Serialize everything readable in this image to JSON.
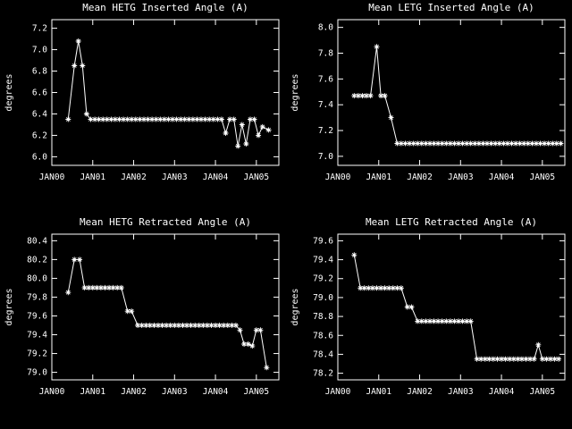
{
  "page": {
    "background": "#000000",
    "foreground": "#ffffff"
  },
  "chart_data": [
    {
      "type": "line",
      "marker": "asterisk",
      "title": "Mean HETG Inserted Angle (A)",
      "xlabel": "",
      "ylabel": "degrees",
      "xlim": [
        2000.0,
        2005.55
      ],
      "ylim": [
        5.92,
        7.28
      ],
      "yticks": [
        6.0,
        6.2,
        6.4,
        6.6,
        6.8,
        7.0,
        7.2
      ],
      "xtick_values": [
        2000,
        2001,
        2002,
        2003,
        2004,
        2005
      ],
      "xtick_labels": [
        "JAN00",
        "JAN01",
        "JAN02",
        "JAN03",
        "JAN04",
        "JAN05"
      ],
      "grid": false,
      "legend": "none",
      "points": [
        [
          2000.4,
          6.35
        ],
        [
          2000.55,
          6.85
        ],
        [
          2000.65,
          7.08
        ],
        [
          2000.75,
          6.85
        ],
        [
          2000.85,
          6.4
        ],
        [
          2000.95,
          6.35
        ],
        [
          2001.05,
          6.35
        ],
        [
          2001.15,
          6.35
        ],
        [
          2001.25,
          6.35
        ],
        [
          2001.35,
          6.35
        ],
        [
          2001.45,
          6.35
        ],
        [
          2001.55,
          6.35
        ],
        [
          2001.65,
          6.35
        ],
        [
          2001.75,
          6.35
        ],
        [
          2001.85,
          6.35
        ],
        [
          2001.95,
          6.35
        ],
        [
          2002.05,
          6.35
        ],
        [
          2002.15,
          6.35
        ],
        [
          2002.25,
          6.35
        ],
        [
          2002.35,
          6.35
        ],
        [
          2002.45,
          6.35
        ],
        [
          2002.55,
          6.35
        ],
        [
          2002.65,
          6.35
        ],
        [
          2002.75,
          6.35
        ],
        [
          2002.85,
          6.35
        ],
        [
          2002.95,
          6.35
        ],
        [
          2003.05,
          6.35
        ],
        [
          2003.15,
          6.35
        ],
        [
          2003.25,
          6.35
        ],
        [
          2003.35,
          6.35
        ],
        [
          2003.45,
          6.35
        ],
        [
          2003.55,
          6.35
        ],
        [
          2003.65,
          6.35
        ],
        [
          2003.75,
          6.35
        ],
        [
          2003.85,
          6.35
        ],
        [
          2003.95,
          6.35
        ],
        [
          2004.05,
          6.35
        ],
        [
          2004.15,
          6.35
        ],
        [
          2004.25,
          6.22
        ],
        [
          2004.35,
          6.35
        ],
        [
          2004.45,
          6.35
        ],
        [
          2004.55,
          6.1
        ],
        [
          2004.65,
          6.3
        ],
        [
          2004.75,
          6.12
        ],
        [
          2004.85,
          6.35
        ],
        [
          2004.95,
          6.35
        ],
        [
          2005.05,
          6.2
        ],
        [
          2005.15,
          6.28
        ],
        [
          2005.3,
          6.25
        ]
      ]
    },
    {
      "type": "line",
      "marker": "asterisk",
      "title": "Mean LETG Inserted Angle (A)",
      "xlabel": "",
      "ylabel": "degrees",
      "xlim": [
        2000.0,
        2005.55
      ],
      "ylim": [
        6.93,
        8.06
      ],
      "yticks": [
        7.0,
        7.2,
        7.4,
        7.6,
        7.8,
        8.0
      ],
      "xtick_values": [
        2000,
        2001,
        2002,
        2003,
        2004,
        2005
      ],
      "xtick_labels": [
        "JAN00",
        "JAN01",
        "JAN02",
        "JAN03",
        "JAN04",
        "JAN05"
      ],
      "grid": false,
      "legend": "none",
      "points": [
        [
          2000.4,
          7.47
        ],
        [
          2000.5,
          7.47
        ],
        [
          2000.6,
          7.47
        ],
        [
          2000.7,
          7.47
        ],
        [
          2000.8,
          7.47
        ],
        [
          2000.95,
          7.85
        ],
        [
          2001.05,
          7.47
        ],
        [
          2001.15,
          7.47
        ],
        [
          2001.3,
          7.3
        ],
        [
          2001.45,
          7.1
        ],
        [
          2001.55,
          7.1
        ],
        [
          2001.65,
          7.1
        ],
        [
          2001.75,
          7.1
        ],
        [
          2001.85,
          7.1
        ],
        [
          2001.95,
          7.1
        ],
        [
          2002.05,
          7.1
        ],
        [
          2002.15,
          7.1
        ],
        [
          2002.25,
          7.1
        ],
        [
          2002.35,
          7.1
        ],
        [
          2002.45,
          7.1
        ],
        [
          2002.55,
          7.1
        ],
        [
          2002.65,
          7.1
        ],
        [
          2002.75,
          7.1
        ],
        [
          2002.85,
          7.1
        ],
        [
          2002.95,
          7.1
        ],
        [
          2003.05,
          7.1
        ],
        [
          2003.15,
          7.1
        ],
        [
          2003.25,
          7.1
        ],
        [
          2003.35,
          7.1
        ],
        [
          2003.45,
          7.1
        ],
        [
          2003.55,
          7.1
        ],
        [
          2003.65,
          7.1
        ],
        [
          2003.75,
          7.1
        ],
        [
          2003.85,
          7.1
        ],
        [
          2003.95,
          7.1
        ],
        [
          2004.05,
          7.1
        ],
        [
          2004.15,
          7.1
        ],
        [
          2004.25,
          7.1
        ],
        [
          2004.35,
          7.1
        ],
        [
          2004.45,
          7.1
        ],
        [
          2004.55,
          7.1
        ],
        [
          2004.65,
          7.1
        ],
        [
          2004.75,
          7.1
        ],
        [
          2004.85,
          7.1
        ],
        [
          2004.95,
          7.1
        ],
        [
          2005.05,
          7.1
        ],
        [
          2005.15,
          7.1
        ],
        [
          2005.25,
          7.1
        ],
        [
          2005.35,
          7.1
        ],
        [
          2005.45,
          7.1
        ]
      ]
    },
    {
      "type": "line",
      "marker": "asterisk",
      "title": "Mean HETG Retracted Angle (A)",
      "xlabel": "",
      "ylabel": "degrees",
      "xlim": [
        2000.0,
        2005.55
      ],
      "ylim": [
        78.92,
        80.47
      ],
      "yticks": [
        79.0,
        79.2,
        79.4,
        79.6,
        79.8,
        80.0,
        80.2,
        80.4
      ],
      "xtick_values": [
        2000,
        2001,
        2002,
        2003,
        2004,
        2005
      ],
      "xtick_labels": [
        "JAN00",
        "JAN01",
        "JAN02",
        "JAN03",
        "JAN04",
        "JAN05"
      ],
      "grid": false,
      "legend": "none",
      "points": [
        [
          2000.4,
          79.85
        ],
        [
          2000.55,
          80.2
        ],
        [
          2000.68,
          80.2
        ],
        [
          2000.8,
          79.9
        ],
        [
          2000.9,
          79.9
        ],
        [
          2001.0,
          79.9
        ],
        [
          2001.1,
          79.9
        ],
        [
          2001.2,
          79.9
        ],
        [
          2001.3,
          79.9
        ],
        [
          2001.4,
          79.9
        ],
        [
          2001.5,
          79.9
        ],
        [
          2001.6,
          79.9
        ],
        [
          2001.7,
          79.9
        ],
        [
          2001.85,
          79.65
        ],
        [
          2001.95,
          79.65
        ],
        [
          2002.1,
          79.5
        ],
        [
          2002.2,
          79.5
        ],
        [
          2002.3,
          79.5
        ],
        [
          2002.4,
          79.5
        ],
        [
          2002.5,
          79.5
        ],
        [
          2002.6,
          79.5
        ],
        [
          2002.7,
          79.5
        ],
        [
          2002.8,
          79.5
        ],
        [
          2002.9,
          79.5
        ],
        [
          2003.0,
          79.5
        ],
        [
          2003.1,
          79.5
        ],
        [
          2003.2,
          79.5
        ],
        [
          2003.3,
          79.5
        ],
        [
          2003.4,
          79.5
        ],
        [
          2003.5,
          79.5
        ],
        [
          2003.6,
          79.5
        ],
        [
          2003.7,
          79.5
        ],
        [
          2003.8,
          79.5
        ],
        [
          2003.9,
          79.5
        ],
        [
          2004.0,
          79.5
        ],
        [
          2004.1,
          79.5
        ],
        [
          2004.2,
          79.5
        ],
        [
          2004.3,
          79.5
        ],
        [
          2004.4,
          79.5
        ],
        [
          2004.5,
          79.5
        ],
        [
          2004.6,
          79.45
        ],
        [
          2004.7,
          79.3
        ],
        [
          2004.8,
          79.3
        ],
        [
          2004.9,
          79.28
        ],
        [
          2005.0,
          79.45
        ],
        [
          2005.1,
          79.45
        ],
        [
          2005.25,
          79.05
        ]
      ]
    },
    {
      "type": "line",
      "marker": "asterisk",
      "title": "Mean LETG Retracted Angle (A)",
      "xlabel": "",
      "ylabel": "degrees",
      "xlim": [
        2000.0,
        2005.55
      ],
      "ylim": [
        78.13,
        79.67
      ],
      "yticks": [
        78.2,
        78.4,
        78.6,
        78.8,
        79.0,
        79.2,
        79.4,
        79.6
      ],
      "xtick_values": [
        2000,
        2001,
        2002,
        2003,
        2004,
        2005
      ],
      "xtick_labels": [
        "JAN00",
        "JAN01",
        "JAN02",
        "JAN03",
        "JAN04",
        "JAN05"
      ],
      "grid": false,
      "legend": "none",
      "points": [
        [
          2000.4,
          79.45
        ],
        [
          2000.55,
          79.1
        ],
        [
          2000.65,
          79.1
        ],
        [
          2000.75,
          79.1
        ],
        [
          2000.85,
          79.1
        ],
        [
          2000.95,
          79.1
        ],
        [
          2001.05,
          79.1
        ],
        [
          2001.15,
          79.1
        ],
        [
          2001.25,
          79.1
        ],
        [
          2001.35,
          79.1
        ],
        [
          2001.45,
          79.1
        ],
        [
          2001.55,
          79.1
        ],
        [
          2001.7,
          78.9
        ],
        [
          2001.8,
          78.9
        ],
        [
          2001.95,
          78.75
        ],
        [
          2002.05,
          78.75
        ],
        [
          2002.15,
          78.75
        ],
        [
          2002.25,
          78.75
        ],
        [
          2002.35,
          78.75
        ],
        [
          2002.45,
          78.75
        ],
        [
          2002.55,
          78.75
        ],
        [
          2002.65,
          78.75
        ],
        [
          2002.75,
          78.75
        ],
        [
          2002.85,
          78.75
        ],
        [
          2002.95,
          78.75
        ],
        [
          2003.05,
          78.75
        ],
        [
          2003.15,
          78.75
        ],
        [
          2003.25,
          78.75
        ],
        [
          2003.4,
          78.35
        ],
        [
          2003.5,
          78.35
        ],
        [
          2003.6,
          78.35
        ],
        [
          2003.7,
          78.35
        ],
        [
          2003.8,
          78.35
        ],
        [
          2003.9,
          78.35
        ],
        [
          2004.0,
          78.35
        ],
        [
          2004.1,
          78.35
        ],
        [
          2004.2,
          78.35
        ],
        [
          2004.3,
          78.35
        ],
        [
          2004.4,
          78.35
        ],
        [
          2004.5,
          78.35
        ],
        [
          2004.6,
          78.35
        ],
        [
          2004.7,
          78.35
        ],
        [
          2004.8,
          78.35
        ],
        [
          2004.9,
          78.5
        ],
        [
          2005.0,
          78.35
        ],
        [
          2005.1,
          78.35
        ],
        [
          2005.2,
          78.35
        ],
        [
          2005.3,
          78.35
        ],
        [
          2005.4,
          78.35
        ]
      ]
    }
  ]
}
